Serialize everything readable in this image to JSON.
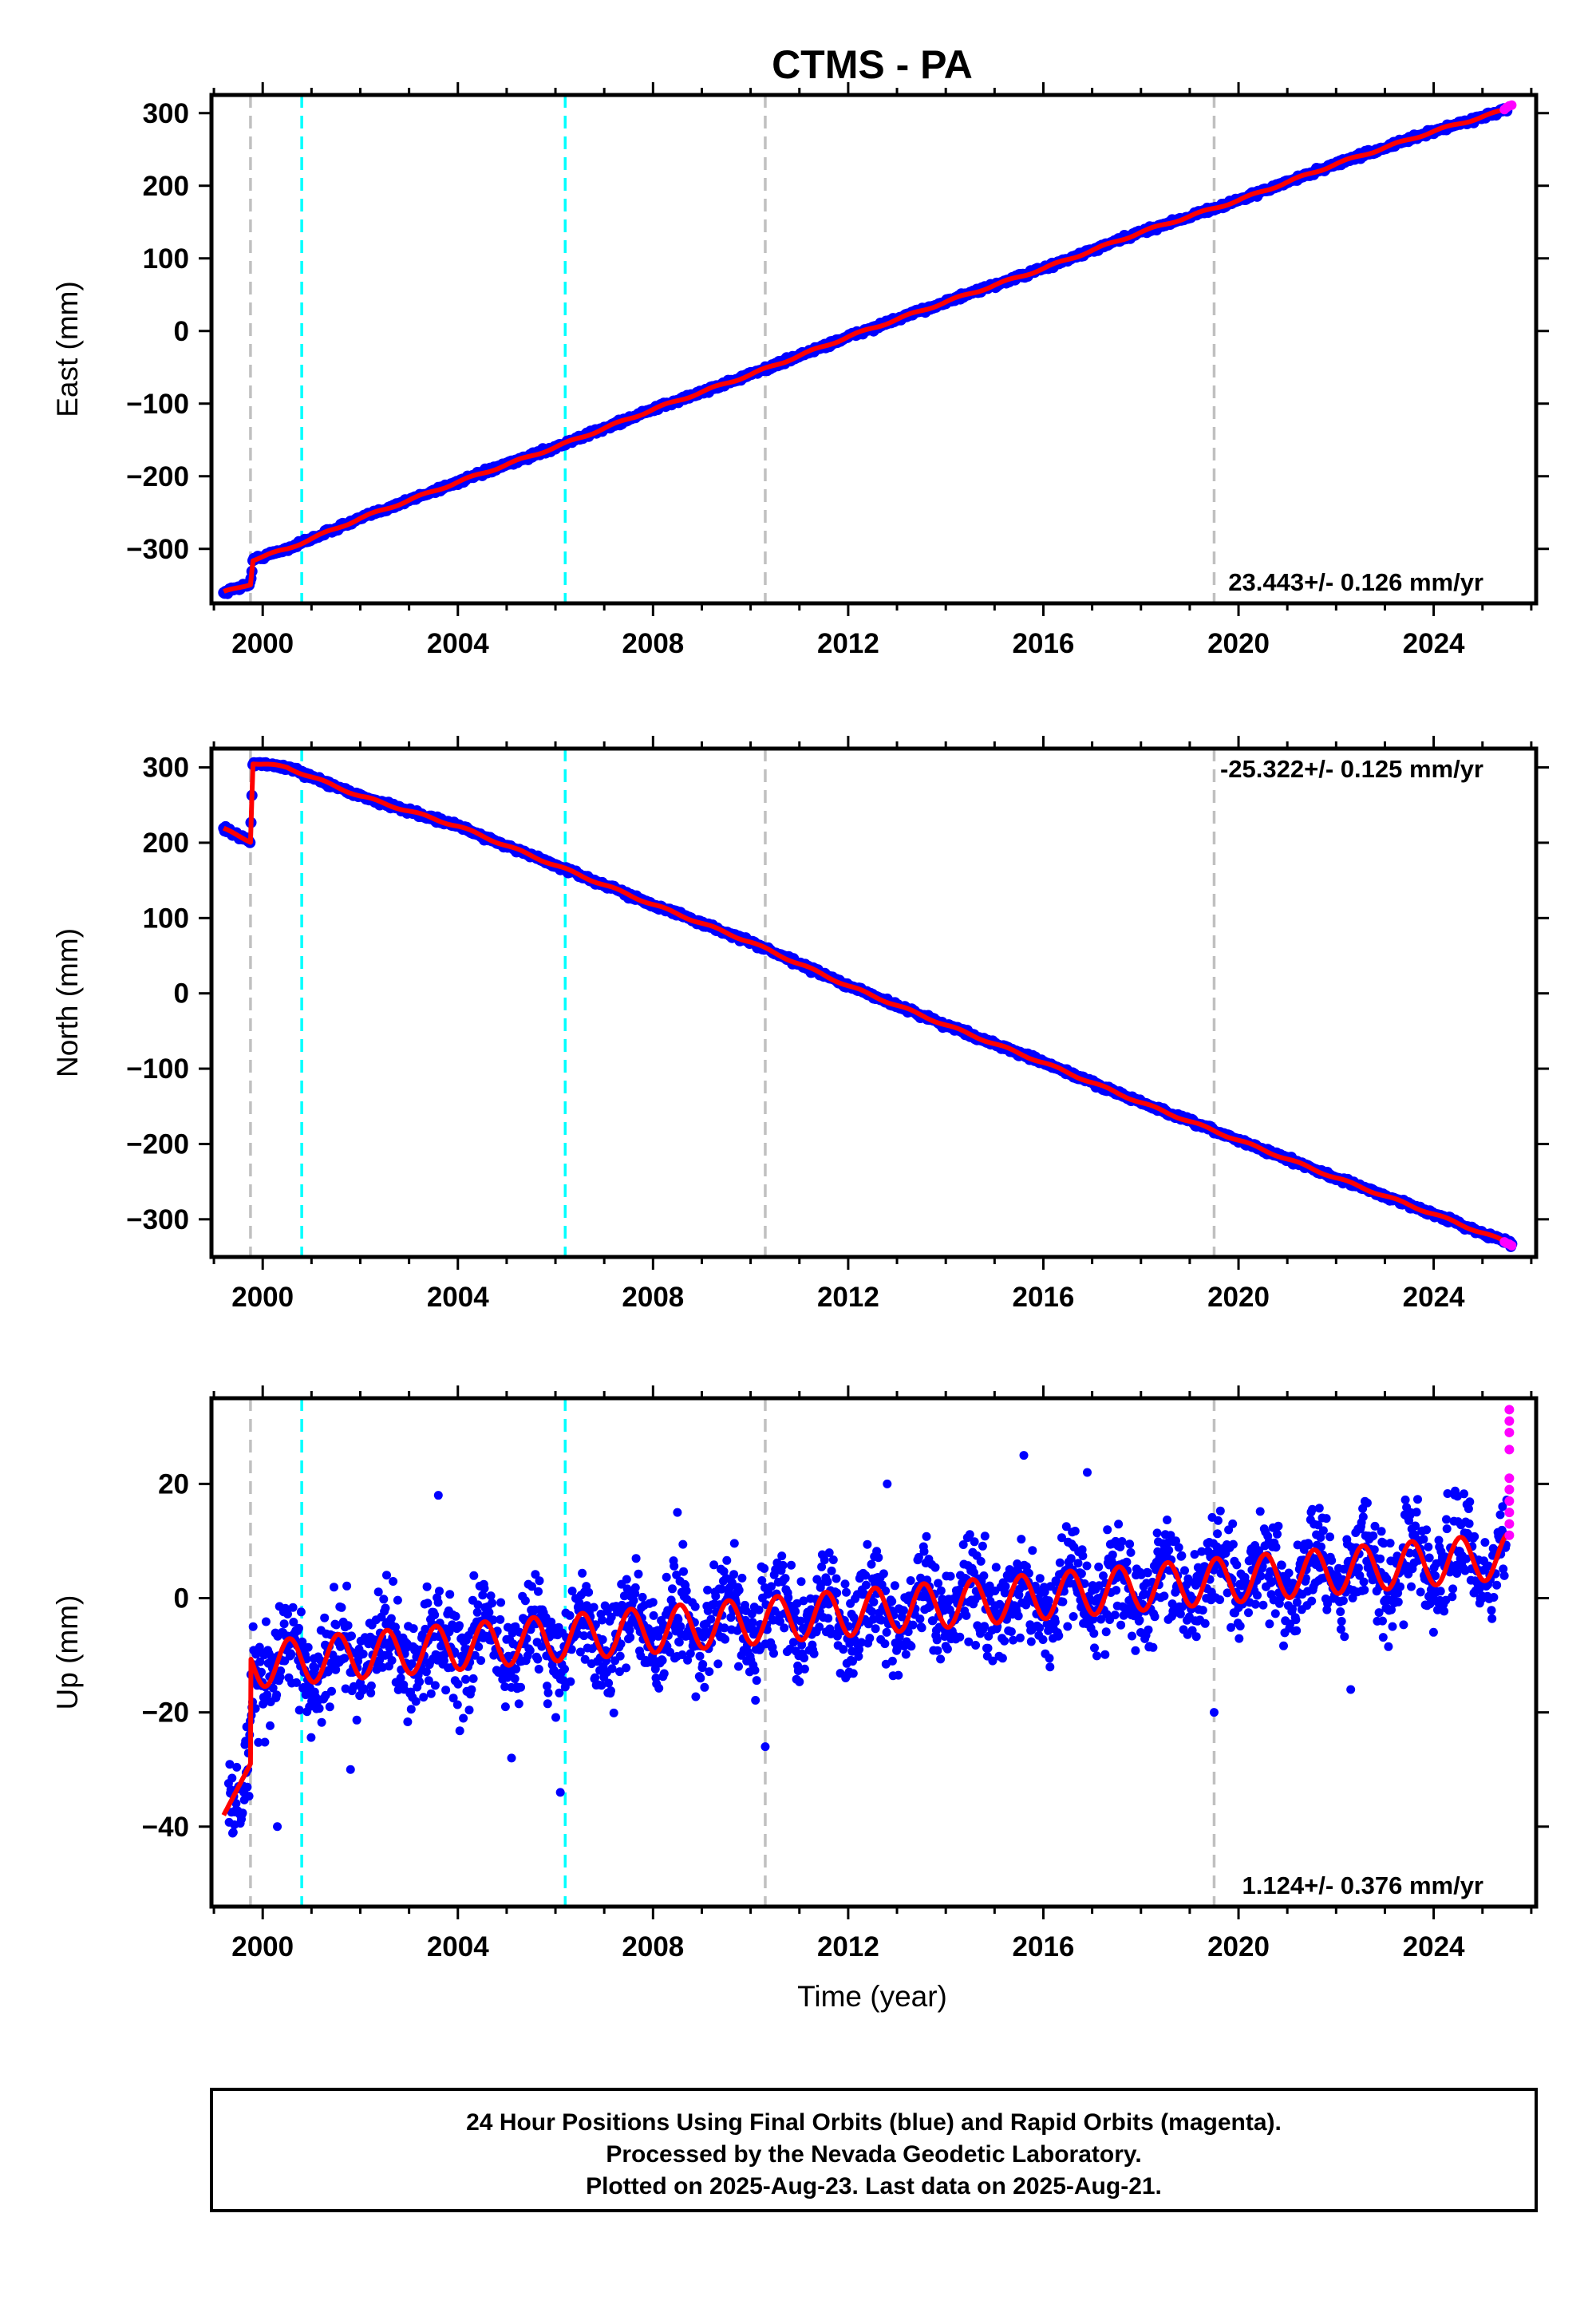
{
  "title": "CTMS - PA",
  "xlabel": "Time (year)",
  "caption": {
    "line1": "24 Hour Positions Using Final Orbits (blue) and Rapid Orbits (magenta).",
    "line2": "Processed by the Nevada Geodetic Laboratory.",
    "line3": "Plotted on 2025-Aug-23. Last data on 2025-Aug-21."
  },
  "colors": {
    "final_orbits": "#0000ff",
    "rapid_orbits": "#ff00ff",
    "model_fit": "#ff0000",
    "equipment_change": "#c0c0c0",
    "earthquake": "#00ffff"
  },
  "chart_data": [
    {
      "type": "scatter",
      "panel": "east",
      "ylabel": "East (mm)",
      "xlim": [
        1998.95,
        2026.1
      ],
      "ylim": [
        -375,
        325
      ],
      "xticks": [
        2000,
        2004,
        2008,
        2012,
        2016,
        2020,
        2024
      ],
      "yticks": [
        -300,
        -200,
        -100,
        0,
        100,
        200,
        300
      ],
      "rate_label": "23.443+/- 0.126 mm/yr",
      "rate_position": "bottom-right",
      "vlines_gray": [
        1999.75,
        2010.3,
        2019.5
      ],
      "vlines_cyan": [
        2000.8,
        2006.2
      ],
      "series": [
        {
          "marker": "final_orbits",
          "x": [
            1999.2,
            1999.75,
            1999.8,
            2000.5,
            2002,
            2004,
            2006,
            2008,
            2010,
            2012,
            2014,
            2016,
            2018,
            2020,
            2022,
            2024,
            2025.5
          ],
          "y": [
            -360,
            -348,
            -315,
            -300,
            -258,
            -208,
            -160,
            -108,
            -60,
            -8,
            40,
            86,
            136,
            180,
            230,
            275,
            305
          ]
        },
        {
          "marker": "rapid_orbits",
          "x": [
            2025.45,
            2025.5,
            2025.55,
            2025.6
          ],
          "y": [
            305,
            308,
            310,
            311
          ]
        }
      ]
    },
    {
      "type": "scatter",
      "panel": "north",
      "ylabel": "North (mm)",
      "xlim": [
        1998.95,
        2026.1
      ],
      "ylim": [
        -350,
        325
      ],
      "xticks": [
        2000,
        2004,
        2008,
        2012,
        2016,
        2020,
        2024
      ],
      "yticks": [
        -300,
        -200,
        -100,
        0,
        100,
        200,
        300
      ],
      "rate_label": "-25.322+/- 0.125 mm/yr",
      "rate_position": "top-right",
      "vlines_gray": [
        1999.75,
        2010.3,
        2019.5
      ],
      "vlines_cyan": [
        2000.8,
        2006.2
      ],
      "series": [
        {
          "marker": "final_orbits",
          "x": [
            1999.2,
            1999.75,
            1999.8,
            2000.5,
            2002,
            2004,
            2006,
            2008,
            2010,
            2012,
            2014,
            2016,
            2018,
            2020,
            2022,
            2024,
            2025.6
          ],
          "y": [
            218,
            202,
            306,
            300,
            262,
            222,
            170,
            118,
            68,
            10,
            -42,
            -92,
            -145,
            -195,
            -245,
            -293,
            -333
          ]
        },
        {
          "marker": "rapid_orbits",
          "x": [
            2025.45,
            2025.5,
            2025.55,
            2025.6
          ],
          "y": [
            -330,
            -332,
            -333,
            -335
          ]
        }
      ]
    },
    {
      "type": "scatter",
      "panel": "up",
      "ylabel": "Up (mm)",
      "xlim": [
        1998.95,
        2026.1
      ],
      "ylim": [
        -54,
        35
      ],
      "xticks": [
        2000,
        2004,
        2008,
        2012,
        2016,
        2020,
        2024
      ],
      "yticks": [
        -40,
        -20,
        0,
        20
      ],
      "rate_label": "1.124+/- 0.376 mm/yr",
      "rate_position": "bottom-right",
      "vlines_gray": [
        1999.75,
        2010.3,
        2019.5
      ],
      "vlines_cyan": [
        2000.8,
        2006.2
      ],
      "model": {
        "pre_x": [
          1999.2,
          1999.75
        ],
        "pre_y": [
          -38,
          -29
        ],
        "offset_at": 1999.75,
        "base_at_2000": -11.5,
        "rate": 0.74,
        "amplitude": 4.0
      },
      "series": [
        {
          "marker": "final_orbits",
          "x": [
            1999.3,
            1999.6,
            2000,
            2001,
            2002,
            2004,
            2006,
            2008,
            2010,
            2012,
            2014,
            2016,
            2018,
            2020,
            2022,
            2024,
            2025.5
          ],
          "y": [
            -40,
            -32,
            -8,
            -13,
            -12,
            -7,
            -9,
            -6,
            -5,
            -3,
            0,
            2,
            5,
            6,
            8,
            9,
            10
          ],
          "spread": 6
        },
        {
          "marker": "rapid_orbits",
          "x": [
            2025.55,
            2025.55,
            2025.55,
            2025.55,
            2025.55,
            2025.55,
            2025.55,
            2025.55,
            2025.55,
            2025.55
          ],
          "y": [
            33,
            31,
            29,
            26,
            21,
            19,
            17,
            15,
            13,
            11
          ]
        }
      ]
    }
  ]
}
